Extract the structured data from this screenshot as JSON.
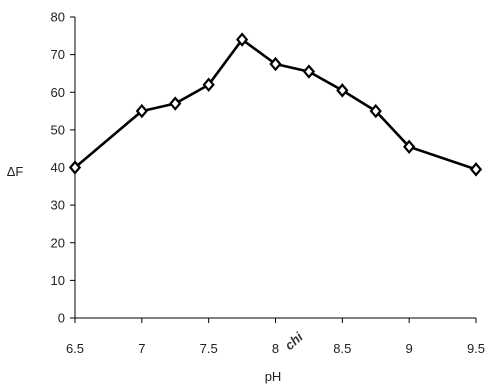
{
  "chart_data": {
    "type": "line",
    "xlabel": "pH",
    "ylabel": "ΔF",
    "xlim": [
      6.5,
      9.5
    ],
    "ylim": [
      0,
      80
    ],
    "x_ticks": [
      "6.5",
      "7",
      "7.5",
      "8",
      "8.5",
      "9",
      "9.5"
    ],
    "y_ticks": [
      "0",
      "10",
      "20",
      "30",
      "40",
      "50",
      "60",
      "70",
      "80"
    ],
    "grid": false,
    "legend": "none",
    "marker": "diamond",
    "line_color": "#000000",
    "series": [
      {
        "x": [
          6.5,
          7.0,
          7.25,
          7.5,
          7.75,
          8.0,
          8.25,
          8.5,
          8.75,
          9.0,
          9.5
        ],
        "values": [
          40,
          55,
          57,
          62,
          74,
          67.5,
          65.5,
          60.5,
          55,
          45.5,
          39.5
        ]
      }
    ]
  }
}
